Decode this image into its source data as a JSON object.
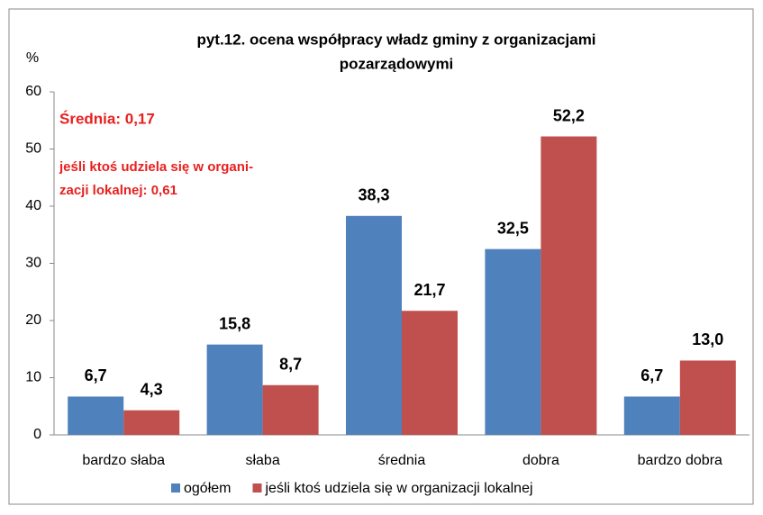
{
  "chart_data": {
    "type": "bar",
    "title": [
      "pyt.12. ocena współpracy władz gminy z organizacjami",
      "pozarządowymi"
    ],
    "y_label": "%",
    "annotations": [
      "Średnia: 0,17",
      "jeśli ktoś udziela się w organi-",
      "zacji lokalnej: 0,61"
    ],
    "categories": [
      "bardzo słaba",
      "słaba",
      "średnia",
      "dobra",
      "bardzo dobra"
    ],
    "series": [
      {
        "name": "ogółem",
        "color": "#4f81bd",
        "values": [
          6.7,
          15.8,
          38.3,
          32.5,
          6.7
        ],
        "value_labels": [
          "6,7",
          "15,8",
          "38,3",
          "32,5",
          "6,7"
        ]
      },
      {
        "name": "jeśli ktoś udziela się w organizacji lokalnej",
        "color": "#c0504d",
        "values": [
          4.3,
          8.7,
          21.7,
          52.2,
          13.0
        ],
        "value_labels": [
          "4,3",
          "8,7",
          "21,7",
          "52,2",
          "13,0"
        ]
      }
    ],
    "ylim": [
      0,
      60
    ],
    "yticks": [
      0,
      10,
      20,
      30,
      40,
      50,
      60
    ],
    "grid": false,
    "legend": "bottom"
  }
}
